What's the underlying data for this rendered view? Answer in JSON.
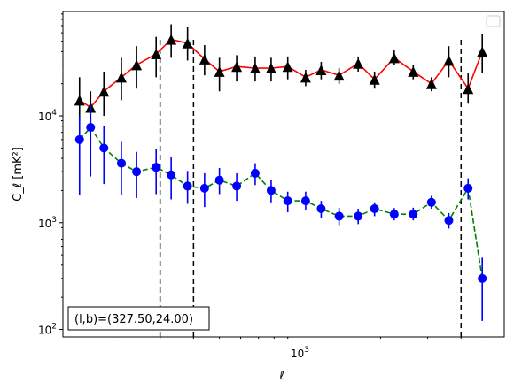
{
  "chart_data": {
    "type": "scatter",
    "xlabel": "ℓ",
    "ylabel": "C_ℓ [mK²]",
    "x_scale": "log",
    "y_scale": "log",
    "xlim": [
      130,
      5800
    ],
    "ylim": [
      85,
      95000
    ],
    "y_ticks": [
      {
        "value": 100,
        "base": "10",
        "exp": "2"
      },
      {
        "value": 1000,
        "base": "10",
        "exp": "3"
      },
      {
        "value": 10000,
        "base": "10",
        "exp": "4"
      }
    ],
    "x_ticks": [
      {
        "value": 1000,
        "base": "10",
        "exp": "3"
      }
    ],
    "vlines": [
      300,
      400,
      4000
    ],
    "annotation": "(l,b)=(327.50,24.00)",
    "legend": "empty box, top-right",
    "series": [
      {
        "color": "#ff0000",
        "marker_color": "#000000",
        "marker": "triangle",
        "linestyle": "solid",
        "points": [
          {
            "x": 150,
            "y": 14000,
            "lo": 9000,
            "hi": 23000
          },
          {
            "x": 165,
            "y": 12000,
            "lo": 8500,
            "hi": 17000
          },
          {
            "x": 185,
            "y": 17000,
            "lo": 10000,
            "hi": 26000
          },
          {
            "x": 215,
            "y": 23000,
            "lo": 14000,
            "hi": 35000
          },
          {
            "x": 245,
            "y": 30000,
            "lo": 18000,
            "hi": 45000
          },
          {
            "x": 290,
            "y": 38000,
            "lo": 23000,
            "hi": 55000
          },
          {
            "x": 330,
            "y": 52000,
            "lo": 35000,
            "hi": 72000
          },
          {
            "x": 380,
            "y": 48000,
            "lo": 33000,
            "hi": 68000
          },
          {
            "x": 440,
            "y": 34000,
            "lo": 24000,
            "hi": 46000
          },
          {
            "x": 500,
            "y": 26000,
            "lo": 17000,
            "hi": 35000
          },
          {
            "x": 580,
            "y": 29000,
            "lo": 21000,
            "hi": 37000
          },
          {
            "x": 680,
            "y": 28000,
            "lo": 21000,
            "hi": 36000
          },
          {
            "x": 780,
            "y": 28000,
            "lo": 21000,
            "hi": 35000
          },
          {
            "x": 900,
            "y": 29000,
            "lo": 22000,
            "hi": 36000
          },
          {
            "x": 1050,
            "y": 23000,
            "lo": 19000,
            "hi": 27000
          },
          {
            "x": 1200,
            "y": 27000,
            "lo": 22000,
            "hi": 32000
          },
          {
            "x": 1400,
            "y": 24000,
            "lo": 20000,
            "hi": 28000
          },
          {
            "x": 1650,
            "y": 31000,
            "lo": 26000,
            "hi": 36000
          },
          {
            "x": 1900,
            "y": 22000,
            "lo": 18000,
            "hi": 26000
          },
          {
            "x": 2250,
            "y": 35000,
            "lo": 30000,
            "hi": 41000
          },
          {
            "x": 2650,
            "y": 26000,
            "lo": 22000,
            "hi": 30000
          },
          {
            "x": 3100,
            "y": 20000,
            "lo": 17000,
            "hi": 23000
          },
          {
            "x": 3600,
            "y": 33000,
            "lo": 23000,
            "hi": 45000
          },
          {
            "x": 4250,
            "y": 18000,
            "lo": 13000,
            "hi": 25000
          },
          {
            "x": 4800,
            "y": 40000,
            "lo": 25000,
            "hi": 58000
          }
        ]
      },
      {
        "color": "#008000",
        "marker_color": "#0000ff",
        "marker": "circle",
        "linestyle": "dashed",
        "points": [
          {
            "x": 150,
            "y": 6000,
            "lo": 1800,
            "hi": 10000
          },
          {
            "x": 165,
            "y": 7800,
            "lo": 2700,
            "hi": 12500
          },
          {
            "x": 185,
            "y": 5000,
            "lo": 2300,
            "hi": 8000
          },
          {
            "x": 215,
            "y": 3600,
            "lo": 1800,
            "hi": 5700
          },
          {
            "x": 245,
            "y": 3000,
            "lo": 1700,
            "hi": 4600
          },
          {
            "x": 290,
            "y": 3300,
            "lo": 1850,
            "hi": 4850
          },
          {
            "x": 330,
            "y": 2800,
            "lo": 1650,
            "hi": 4100
          },
          {
            "x": 380,
            "y": 2200,
            "lo": 1500,
            "hi": 3050
          },
          {
            "x": 440,
            "y": 2100,
            "lo": 1400,
            "hi": 2900
          },
          {
            "x": 500,
            "y": 2500,
            "lo": 1850,
            "hi": 3250
          },
          {
            "x": 580,
            "y": 2200,
            "lo": 1600,
            "hi": 2900
          },
          {
            "x": 680,
            "y": 2900,
            "lo": 2250,
            "hi": 3600
          },
          {
            "x": 780,
            "y": 2000,
            "lo": 1550,
            "hi": 2500
          },
          {
            "x": 900,
            "y": 1600,
            "lo": 1250,
            "hi": 1950
          },
          {
            "x": 1050,
            "y": 1600,
            "lo": 1300,
            "hi": 1950
          },
          {
            "x": 1200,
            "y": 1350,
            "lo": 1100,
            "hi": 1600
          },
          {
            "x": 1400,
            "y": 1150,
            "lo": 950,
            "hi": 1380
          },
          {
            "x": 1650,
            "y": 1150,
            "lo": 970,
            "hi": 1350
          },
          {
            "x": 1900,
            "y": 1350,
            "lo": 1150,
            "hi": 1550
          },
          {
            "x": 2250,
            "y": 1200,
            "lo": 1050,
            "hi": 1370
          },
          {
            "x": 2650,
            "y": 1200,
            "lo": 1050,
            "hi": 1380
          },
          {
            "x": 3100,
            "y": 1550,
            "lo": 1350,
            "hi": 1780
          },
          {
            "x": 3600,
            "y": 1050,
            "lo": 880,
            "hi": 1230
          },
          {
            "x": 4250,
            "y": 2100,
            "lo": 1650,
            "hi": 2600
          },
          {
            "x": 4800,
            "y": 300,
            "lo": 120,
            "hi": 470
          }
        ]
      }
    ]
  }
}
